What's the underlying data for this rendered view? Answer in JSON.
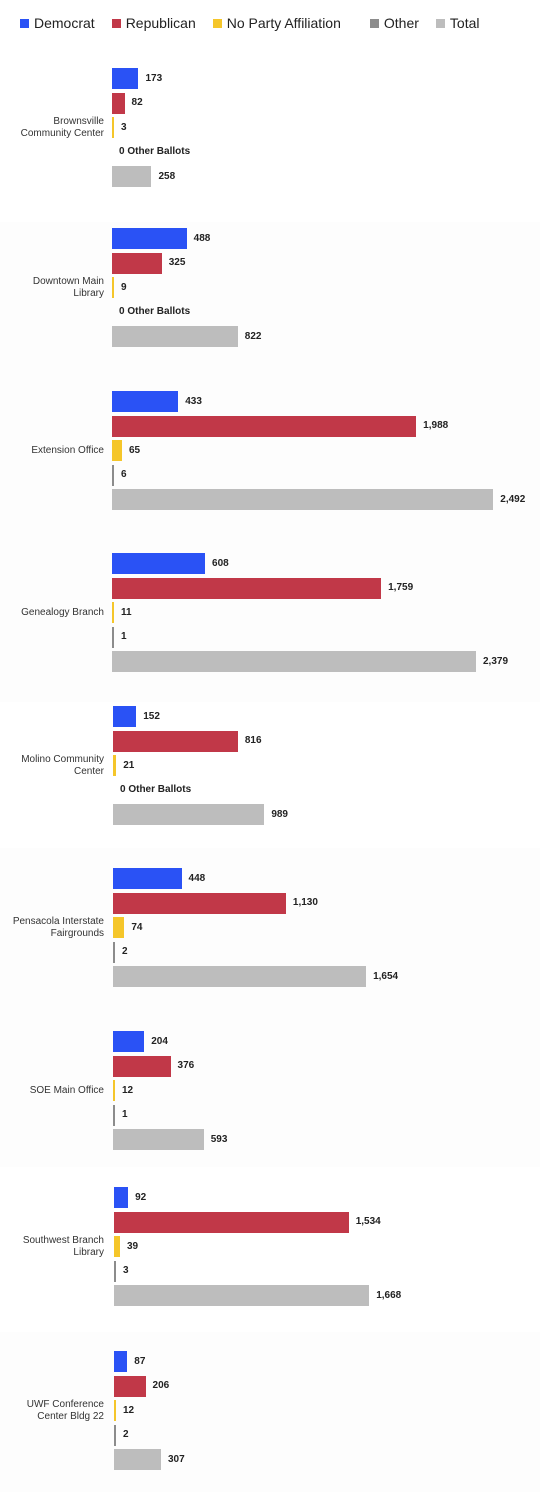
{
  "chart_data": {
    "type": "bar",
    "orientation": "horizontal",
    "legend_position": "top",
    "grid": false,
    "series_names": [
      "Democrat",
      "Republican",
      "No Party Affiliation",
      "Other",
      "Total"
    ],
    "colors": {
      "Democrat": "#2a52f5",
      "Republican": "#c13848",
      "No Party Affiliation": "#f5c62a",
      "Other": "#8c8c8c",
      "Total": "#bdbdbd"
    },
    "zero_other_label": "0 Other Ballots",
    "groups": [
      {
        "label": "Brownsville Community Center",
        "values": [
          173,
          82,
          3,
          0,
          258
        ],
        "display": [
          "173",
          "82",
          "3",
          "0 Other Ballots",
          "258"
        ]
      },
      {
        "label": "Downtown Main Library",
        "values": [
          488,
          325,
          9,
          0,
          822
        ],
        "display": [
          "488",
          "325",
          "9",
          "0 Other Ballots",
          "822"
        ]
      },
      {
        "label": "Extension Office",
        "values": [
          433,
          1988,
          65,
          6,
          2492
        ],
        "display": [
          "433",
          "1,988",
          "65",
          "6",
          "2,492"
        ]
      },
      {
        "label": "Genealogy Branch",
        "values": [
          608,
          1759,
          11,
          1,
          2379
        ],
        "display": [
          "608",
          "1,759",
          "11",
          "1",
          "2,379"
        ]
      },
      {
        "label": "Molino Community Center",
        "values": [
          152,
          816,
          21,
          0,
          989
        ],
        "display": [
          "152",
          "816",
          "21",
          "0 Other Ballots",
          "989"
        ]
      },
      {
        "label": "Pensacola Interstate Fairgrounds",
        "values": [
          448,
          1130,
          74,
          2,
          1654
        ],
        "display": [
          "448",
          "1,130",
          "74",
          "2",
          "1,654"
        ]
      },
      {
        "label": "SOE Main Office",
        "values": [
          204,
          376,
          12,
          1,
          593
        ],
        "display": [
          "204",
          "376",
          "12",
          "1",
          "593"
        ]
      },
      {
        "label": "Southwest Branch Library",
        "values": [
          92,
          1534,
          39,
          3,
          1668
        ],
        "display": [
          "92",
          "1,534",
          "39",
          "3",
          "1,668"
        ]
      },
      {
        "label": "UWF Conference Center Bldg 22",
        "values": [
          87,
          206,
          12,
          2,
          307
        ],
        "display": [
          "87",
          "206",
          "12",
          "2",
          "307"
        ]
      }
    ]
  }
}
